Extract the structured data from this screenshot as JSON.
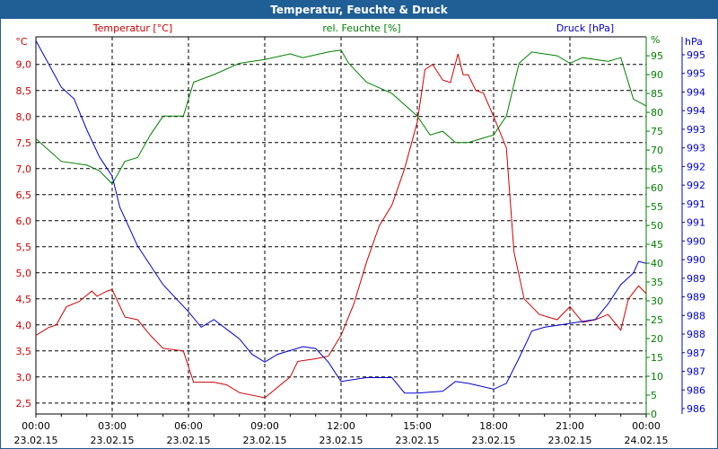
{
  "window": {
    "title": "Temperatur, Feuchte & Druck"
  },
  "colors": {
    "temperature": "#d00000",
    "humidity": "#008000",
    "pressure": "#0000d0",
    "titlebar": "#1f5f96"
  },
  "chart_data": {
    "type": "line",
    "title": "Temperatur, Feuchte & Druck",
    "xlabel": "",
    "x_ticks": [
      {
        "time": "00:00",
        "date": "23.02.15"
      },
      {
        "time": "03:00",
        "date": "23.02.15"
      },
      {
        "time": "06:00",
        "date": "23.02.15"
      },
      {
        "time": "09:00",
        "date": "23.02.15"
      },
      {
        "time": "12:00",
        "date": "23.02.15"
      },
      {
        "time": "15:00",
        "date": "23.02.15"
      },
      {
        "time": "18:00",
        "date": "23.02.15"
      },
      {
        "time": "21:00",
        "date": "23.02.15"
      },
      {
        "time": "00:00",
        "date": "24.02.15"
      }
    ],
    "xlim_hours": [
      0,
      24
    ],
    "grid": true,
    "axes": {
      "temperature": {
        "unit": "°C",
        "legend": "Temperatur [°C]",
        "ylim": [
          2.29,
          9.53
        ],
        "ticks": [
          "2,5",
          "3,0",
          "3,5",
          "4,0",
          "4,5",
          "5,0",
          "5,5",
          "6,0",
          "6,5",
          "7,0",
          "7,5",
          "8,0",
          "8,5",
          "9,0"
        ]
      },
      "humidity": {
        "unit": "%",
        "legend": "rel. Feuchte [%]",
        "ylim": [
          0,
          95.5
        ],
        "ticks": [
          "0",
          "5",
          "10",
          "15",
          "20",
          "25",
          "30",
          "35",
          "40",
          "45",
          "50",
          "55",
          "60",
          "65",
          "70",
          "75",
          "80",
          "85",
          "90",
          "95"
        ]
      },
      "pressure": {
        "unit": "hPa",
        "legend": "Druck [hPa]",
        "ylim": [
          985.86,
          995.6
        ],
        "ticks": [
          "986",
          "986",
          "987",
          "987",
          "988",
          "988",
          "989",
          "989",
          "990",
          "990",
          "991",
          "991",
          "992",
          "992",
          "993",
          "993",
          "994",
          "994",
          "995",
          "995"
        ]
      }
    },
    "series": [
      {
        "name": "Temperatur [°C]",
        "axis": "temperature",
        "x": [
          0,
          0.5,
          0.8,
          1.2,
          1.7,
          2.2,
          2.4,
          2.8,
          3.0,
          3.5,
          4,
          4.5,
          5,
          5.8,
          6.2,
          7,
          7.5,
          8,
          9,
          10,
          10.3,
          11,
          11.5,
          12,
          12.5,
          13,
          13.5,
          14,
          14.5,
          15,
          15.3,
          15.6,
          16,
          16.3,
          16.6,
          16.8,
          17,
          17.3,
          17.6,
          18,
          18.5,
          18.8,
          19.2,
          19.8,
          20.5,
          21,
          21.5,
          22,
          22.5,
          23,
          23.3,
          23.7,
          24
        ],
        "y": [
          3.8,
          3.95,
          4.0,
          4.35,
          4.45,
          4.65,
          4.55,
          4.65,
          4.68,
          4.15,
          4.1,
          3.8,
          3.55,
          3.5,
          2.9,
          2.9,
          2.85,
          2.7,
          2.6,
          3.0,
          3.3,
          3.35,
          3.4,
          3.8,
          4.4,
          5.2,
          5.9,
          6.3,
          7.0,
          7.9,
          8.9,
          9.0,
          8.7,
          8.65,
          9.2,
          8.8,
          8.8,
          8.5,
          8.45,
          8.0,
          7.4,
          5.4,
          4.5,
          4.2,
          4.1,
          4.35,
          4.05,
          4.1,
          4.2,
          3.9,
          4.5,
          4.75,
          4.6
        ]
      },
      {
        "name": "rel. Feuchte [%]",
        "axis": "humidity",
        "x": [
          0,
          1,
          2,
          2.5,
          3,
          3.5,
          4,
          4.5,
          5,
          5.8,
          6.2,
          7,
          8,
          9,
          10,
          10.5,
          11.5,
          12,
          12.3,
          13,
          14,
          15,
          15.5,
          16,
          16.5,
          17,
          17.5,
          18,
          18.5,
          19,
          19.5,
          20.5,
          21,
          21.5,
          22.5,
          23,
          23.5,
          24
        ],
        "y": [
          73,
          67,
          66,
          64.5,
          61,
          67,
          68,
          74,
          79,
          79,
          88,
          90,
          93,
          94,
          95.5,
          94.5,
          96,
          96.5,
          93,
          88,
          85,
          79,
          74,
          75,
          72,
          72,
          73,
          74,
          79,
          93,
          96,
          95,
          93,
          94.5,
          93.5,
          94.5,
          83.5,
          81.7
        ]
      },
      {
        "name": "Druck [hPa]",
        "axis": "pressure",
        "x": [
          0,
          0.5,
          1,
          1.5,
          2,
          2.5,
          3,
          3.3,
          4,
          4.5,
          5,
          6,
          6.5,
          7,
          8,
          8.5,
          9,
          9.5,
          10.5,
          11,
          11.5,
          12,
          13,
          14,
          14.5,
          15,
          16,
          16.5,
          17,
          18,
          18.5,
          19,
          19.5,
          20,
          21,
          22,
          22.5,
          23,
          23.5,
          23.7,
          24
        ],
        "y": [
          995.5,
          994.9,
          994.3,
          994.0,
          993.2,
          992.5,
          992.0,
          991.2,
          990.2,
          989.7,
          989.2,
          988.5,
          988.1,
          988.3,
          987.8,
          987.4,
          987.2,
          987.4,
          987.6,
          987.55,
          987.2,
          986.7,
          986.8,
          986.8,
          986.4,
          986.4,
          986.45,
          986.7,
          986.65,
          986.5,
          986.65,
          987.3,
          988.0,
          988.1,
          988.2,
          988.3,
          988.7,
          989.2,
          989.5,
          989.8,
          989.75
        ]
      }
    ]
  }
}
